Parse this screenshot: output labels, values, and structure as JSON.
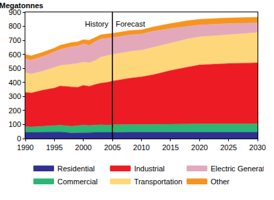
{
  "chart_data": {
    "type": "area",
    "stacked": true,
    "y_label": "Megatonnes",
    "x": [
      1990,
      1991,
      1993,
      1995,
      1996,
      1998,
      1999,
      2000,
      2001,
      2002,
      2003,
      2004,
      2005,
      2008,
      2010,
      2012,
      2015,
      2018,
      2020,
      2025,
      2030
    ],
    "series": [
      {
        "name": "Residential",
        "color": "#2e3192",
        "values": [
          45,
          44,
          46,
          47,
          48,
          40,
          42,
          44,
          43,
          44,
          45,
          44,
          44,
          46,
          46,
          46,
          47,
          48,
          48,
          47,
          46
        ]
      },
      {
        "name": "Commercial",
        "color": "#2bb673",
        "values": [
          40,
          39,
          42,
          45,
          47,
          48,
          50,
          52,
          50,
          51,
          53,
          52,
          54,
          54,
          54,
          55,
          55,
          55,
          56,
          57,
          59
        ]
      },
      {
        "name": "Industrial",
        "color": "#ed1c24",
        "values": [
          245,
          242,
          257,
          268,
          280,
          280,
          273,
          284,
          279,
          290,
          297,
          304,
          312,
          330,
          340,
          354,
          383,
          407,
          421,
          431,
          435
        ]
      },
      {
        "name": "Transportation",
        "color": "#fdd77a",
        "values": [
          140,
          135,
          135,
          145,
          145,
          162,
          170,
          165,
          168,
          170,
          185,
          190,
          190,
          190,
          190,
          195,
          195,
          200,
          200,
          205,
          215
        ]
      },
      {
        "name": "Electric Generation",
        "color": "#e3a9bb",
        "values": [
          100,
          100,
          105,
          115,
          115,
          125,
          125,
          130,
          125,
          135,
          130,
          125,
          120,
          120,
          115,
          115,
          105,
          90,
          85,
          80,
          70
        ]
      },
      {
        "name": "Other",
        "color": "#f7941d",
        "values": [
          30,
          30,
          30,
          25,
          30,
          30,
          30,
          30,
          35,
          30,
          30,
          30,
          30,
          30,
          30,
          30,
          35,
          40,
          40,
          40,
          40
        ]
      }
    ],
    "vline": 2005,
    "annotations": [
      {
        "text": "History",
        "x": 2005,
        "y": 815,
        "side": "left"
      },
      {
        "text": "Forecast",
        "x": 2005,
        "y": 815,
        "side": "right"
      }
    ],
    "xlim": [
      1990,
      2030
    ],
    "xticks": [
      1990,
      1995,
      2000,
      2005,
      2010,
      2015,
      2020,
      2025,
      2030
    ],
    "ylim": [
      0,
      900
    ],
    "yticks": [
      0,
      100,
      200,
      300,
      400,
      500,
      600,
      700,
      800,
      900
    ],
    "grid": false,
    "legend": "bottom"
  }
}
